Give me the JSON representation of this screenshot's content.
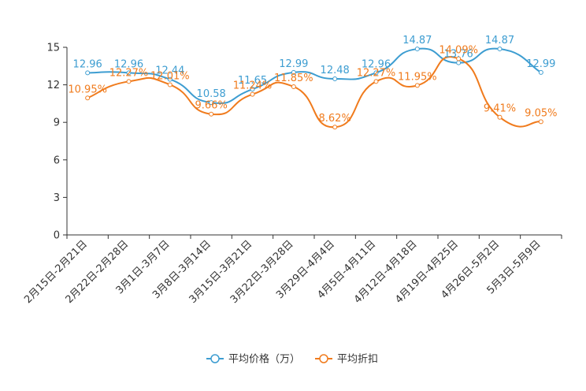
{
  "chart_data": {
    "type": "line",
    "title": "",
    "xlabel": "",
    "ylabel": "",
    "ylim": [
      0,
      15
    ],
    "yticks": [
      0,
      3,
      6,
      9,
      12,
      15
    ],
    "grid": false,
    "legend_position": "bottom-center",
    "categories": [
      "2月15日-2月21日",
      "2月22日-2月28日",
      "3月1日-3月7日",
      "3月8日-3月14日",
      "3月15日-3月21日",
      "3月22日-3月28日",
      "3月29日-4月4日",
      "4月5日-4月11日",
      "4月12日-4月18日",
      "4月19日-4月25日",
      "4月26日-5月2日",
      "5月3日-5月9日"
    ],
    "series": [
      {
        "name": "平均价格（万）",
        "color": "#3d9dd1",
        "values": [
          12.96,
          12.96,
          12.44,
          10.58,
          11.65,
          12.99,
          12.48,
          12.96,
          14.87,
          13.76,
          14.87,
          12.99
        ],
        "labels": [
          "12.96",
          "12.96",
          "12.44",
          "10.58",
          "11.65",
          "12.99",
          "12.48",
          "12.96",
          "14.87",
          "13.76",
          "14.87",
          "12.99"
        ]
      },
      {
        "name": "平均折扣",
        "color": "#f07b1d",
        "values": [
          10.95,
          12.27,
          12.01,
          9.66,
          11.24,
          11.85,
          8.62,
          12.27,
          11.95,
          14.09,
          9.41,
          9.05
        ],
        "labels": [
          "10.95%",
          "12.27%",
          "12.01%",
          "9.66%",
          "11.24%",
          "11.85%",
          "8.62%",
          "12.27%",
          "11.95%",
          "14.09%",
          "9.41%",
          "9.05%"
        ]
      }
    ]
  }
}
